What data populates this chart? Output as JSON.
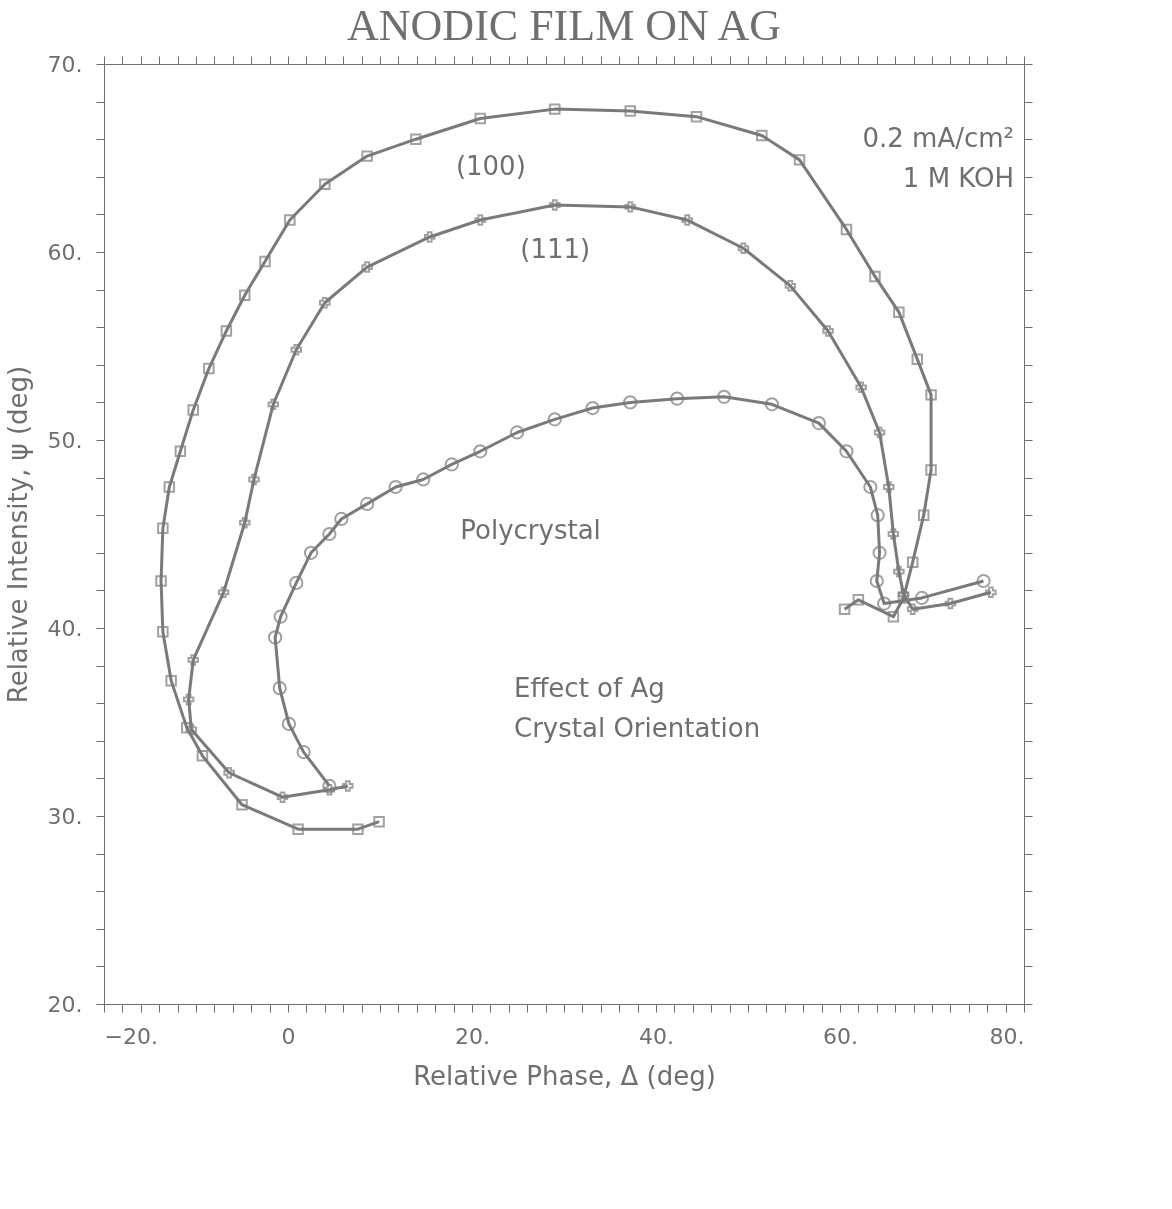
{
  "chart_data": {
    "type": "line",
    "title": "ANODIC FILM ON AG",
    "xlabel": "Relative Phase, Δ (deg)",
    "ylabel": "Relative Intensity, ψ (deg)",
    "xlim": [
      -20,
      80
    ],
    "ylim": [
      20,
      70
    ],
    "xticks": [
      {
        "value": -20,
        "label": "−20."
      },
      {
        "value": -18,
        "label": null
      },
      {
        "value": -16,
        "label": null
      },
      {
        "value": -14,
        "label": null
      },
      {
        "value": -12,
        "label": null
      },
      {
        "value": -10,
        "label": null
      },
      {
        "value": -8,
        "label": null
      },
      {
        "value": -6,
        "label": null
      },
      {
        "value": -4,
        "label": null
      },
      {
        "value": -2,
        "label": null
      },
      0,
      {
        "value": 2,
        "label": null
      },
      {
        "value": 4,
        "label": null
      },
      {
        "value": 6,
        "label": null
      },
      {
        "value": 8,
        "label": null
      },
      {
        "value": 10,
        "label": null
      },
      {
        "value": 12,
        "label": null
      },
      {
        "value": 14,
        "label": null
      },
      {
        "value": 16,
        "label": null
      },
      {
        "value": 18,
        "label": null
      },
      {
        "value": 20,
        "label": "20."
      },
      {
        "value": 22,
        "label": null
      },
      {
        "value": 24,
        "label": null
      },
      {
        "value": 26,
        "label": null
      },
      {
        "value": 28,
        "label": null
      },
      {
        "value": 30,
        "label": null
      },
      {
        "value": 32,
        "label": null
      },
      {
        "value": 34,
        "label": null
      },
      {
        "value": 36,
        "label": null
      },
      {
        "value": 38,
        "label": null
      },
      {
        "value": 40,
        "label": "40."
      },
      {
        "value": 42,
        "label": null
      },
      {
        "value": 44,
        "label": null
      },
      {
        "value": 46,
        "label": null
      },
      {
        "value": 48,
        "label": null
      },
      {
        "value": 50,
        "label": null
      },
      {
        "value": 52,
        "label": null
      },
      {
        "value": 54,
        "label": null
      },
      {
        "value": 56,
        "label": null
      },
      {
        "value": 58,
        "label": null
      },
      {
        "value": 60,
        "label": "60."
      },
      {
        "value": 62,
        "label": null
      },
      {
        "value": 64,
        "label": null
      },
      {
        "value": 66,
        "label": null
      },
      {
        "value": 68,
        "label": null
      },
      {
        "value": 70,
        "label": null
      },
      {
        "value": 72,
        "label": null
      },
      {
        "value": 74,
        "label": null
      },
      {
        "value": 76,
        "label": null
      },
      {
        "value": 78,
        "label": null
      },
      {
        "value": 80,
        "label": "80."
      }
    ],
    "yticks": [
      {
        "value": 20,
        "label": "20."
      },
      {
        "value": 22,
        "label": null
      },
      {
        "value": 24,
        "label": null
      },
      {
        "value": 26,
        "label": null
      },
      {
        "value": 28,
        "label": null
      },
      {
        "value": 30,
        "label": "30."
      },
      {
        "value": 32,
        "label": null
      },
      {
        "value": 34,
        "label": null
      },
      {
        "value": 36,
        "label": null
      },
      {
        "value": 38,
        "label": null
      },
      {
        "value": 40,
        "label": "40."
      },
      {
        "value": 42,
        "label": null
      },
      {
        "value": 44,
        "label": null
      },
      {
        "value": 46,
        "label": null
      },
      {
        "value": 48,
        "label": null
      },
      {
        "value": 50,
        "label": "50."
      },
      {
        "value": 52,
        "label": null
      },
      {
        "value": 54,
        "label": null
      },
      {
        "value": 56,
        "label": null
      },
      {
        "value": 58,
        "label": null
      },
      {
        "value": 60,
        "label": "60."
      },
      {
        "value": 62,
        "label": null
      },
      {
        "value": 64,
        "label": null
      },
      {
        "value": 66,
        "label": null
      },
      {
        "value": 68,
        "label": null
      },
      {
        "value": 70,
        "label": "70."
      }
    ],
    "grid": false,
    "annotations": [
      "0.2 mA/cm²",
      "1 M KOH",
      "Effect of Ag",
      "Crystal Orientation"
    ],
    "series": [
      {
        "name": "(100)",
        "color": "#7a7a7a",
        "marker": "square",
        "x": [
          9.9,
          7.6,
          1.1,
          -5.0,
          -9.3,
          -11.0,
          -12.7,
          -13.6,
          -13.8,
          -13.6,
          -12.9,
          -11.7,
          -10.3,
          -8.6,
          -6.7,
          -4.7,
          -2.5,
          0.2,
          4.0,
          8.6,
          13.9,
          20.9,
          29.0,
          37.2,
          44.4,
          51.5,
          55.6,
          60.7,
          63.8,
          66.4,
          68.4,
          69.9,
          69.9,
          69.1,
          67.9,
          66.9,
          65.8,
          62.0,
          60.5
        ],
        "values": [
          29.7,
          29.3,
          29.3,
          30.6,
          33.2,
          34.7,
          37.2,
          39.8,
          42.5,
          45.3,
          47.5,
          49.4,
          51.6,
          53.8,
          55.8,
          57.7,
          59.5,
          61.7,
          63.6,
          65.1,
          66.0,
          67.1,
          67.6,
          67.5,
          67.2,
          66.2,
          64.9,
          61.2,
          58.7,
          56.8,
          54.3,
          52.4,
          48.4,
          46.0,
          43.5,
          41.6,
          40.6,
          41.5,
          41.0
        ]
      },
      {
        "name": "(111)",
        "color": "#7a7a7a",
        "marker": "cross",
        "x": [
          6.5,
          4.5,
          -0.6,
          -6.4,
          -10.5,
          -10.8,
          -10.3,
          -7.0,
          -4.7,
          -3.7,
          -1.6,
          0.9,
          4.0,
          8.6,
          15.4,
          20.9,
          29.0,
          37.2,
          43.4,
          49.5,
          54.6,
          58.7,
          62.3,
          64.3,
          65.3,
          65.8,
          66.4,
          66.9,
          67.9,
          72.0,
          76.4
        ],
        "values": [
          31.6,
          31.4,
          31.0,
          32.3,
          34.6,
          36.2,
          38.3,
          41.9,
          45.6,
          47.9,
          51.9,
          54.8,
          57.3,
          59.2,
          60.8,
          61.7,
          62.5,
          62.4,
          61.7,
          60.2,
          58.2,
          55.8,
          52.8,
          50.4,
          47.5,
          45.0,
          43.0,
          41.8,
          41.0,
          41.3,
          41.9
        ]
      },
      {
        "name": "Polycrystal",
        "color": "#7a7a7a",
        "marker": "circle",
        "x": [
          4.5,
          1.7,
          0.1,
          -0.9,
          -1.4,
          -0.8,
          0.9,
          2.5,
          4.5,
          5.8,
          8.6,
          11.7,
          14.7,
          17.8,
          20.9,
          24.9,
          29.0,
          33.1,
          37.2,
          42.3,
          47.4,
          52.6,
          57.7,
          60.7,
          63.3,
          64.1,
          64.3,
          64.0,
          64.8,
          68.9,
          75.6
        ],
        "values": [
          31.6,
          33.4,
          34.9,
          36.8,
          39.5,
          40.6,
          42.4,
          44.0,
          45.0,
          45.8,
          46.6,
          47.5,
          47.9,
          48.7,
          49.4,
          50.4,
          51.1,
          51.7,
          52.0,
          52.2,
          52.3,
          51.9,
          50.9,
          49.4,
          47.5,
          46.0,
          44.0,
          42.5,
          41.3,
          41.6,
          42.5
        ]
      }
    ]
  }
}
